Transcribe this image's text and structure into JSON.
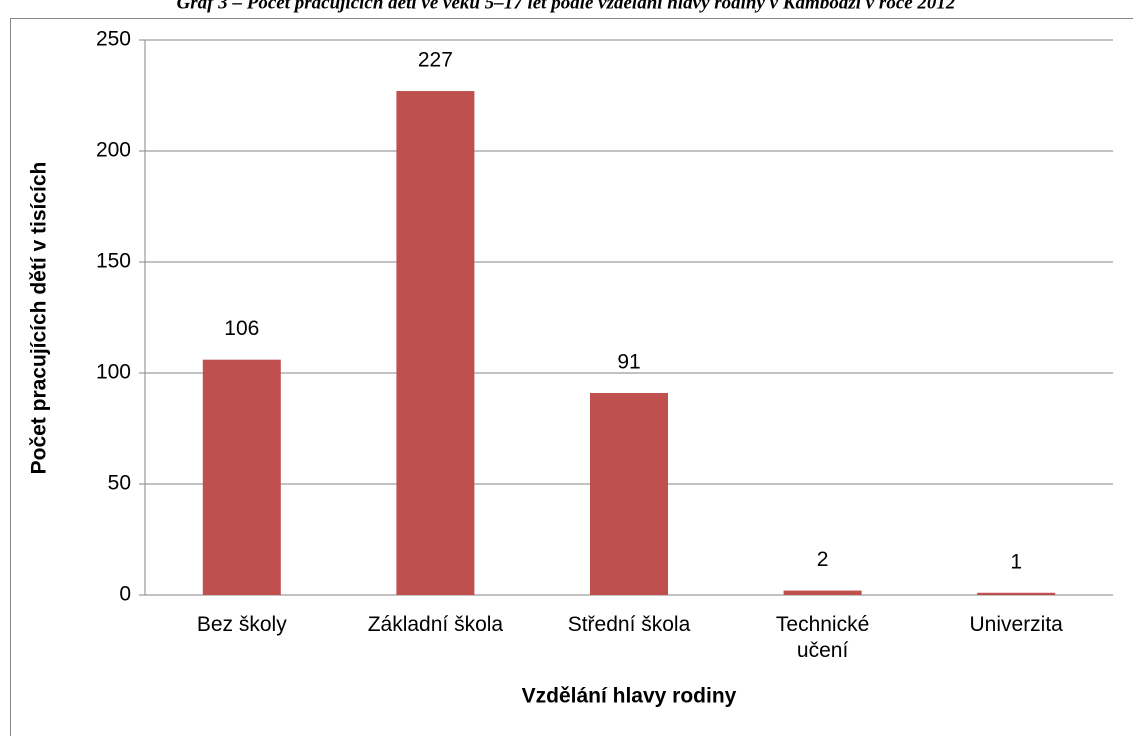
{
  "chart_data": {
    "type": "bar",
    "title": "Graf 3 – Počet pracujících dětí ve věku 5–17 let podle vzdělání hlavy rodiny v Kambodži v roce 2012",
    "x_label": "Vzdělání hlavy rodiny",
    "y_label": "Počet pracujících dětí v tisících",
    "categories": [
      "Bez školy",
      "Základní škola",
      "Střední škola",
      "Technické učení",
      "Univerzita"
    ],
    "values": [
      106,
      227,
      91,
      2,
      1
    ],
    "color": "#c0504d",
    "ylim": [
      0,
      250
    ],
    "yticks": [
      0,
      50,
      100,
      150,
      200,
      250
    ],
    "grid": true
  }
}
